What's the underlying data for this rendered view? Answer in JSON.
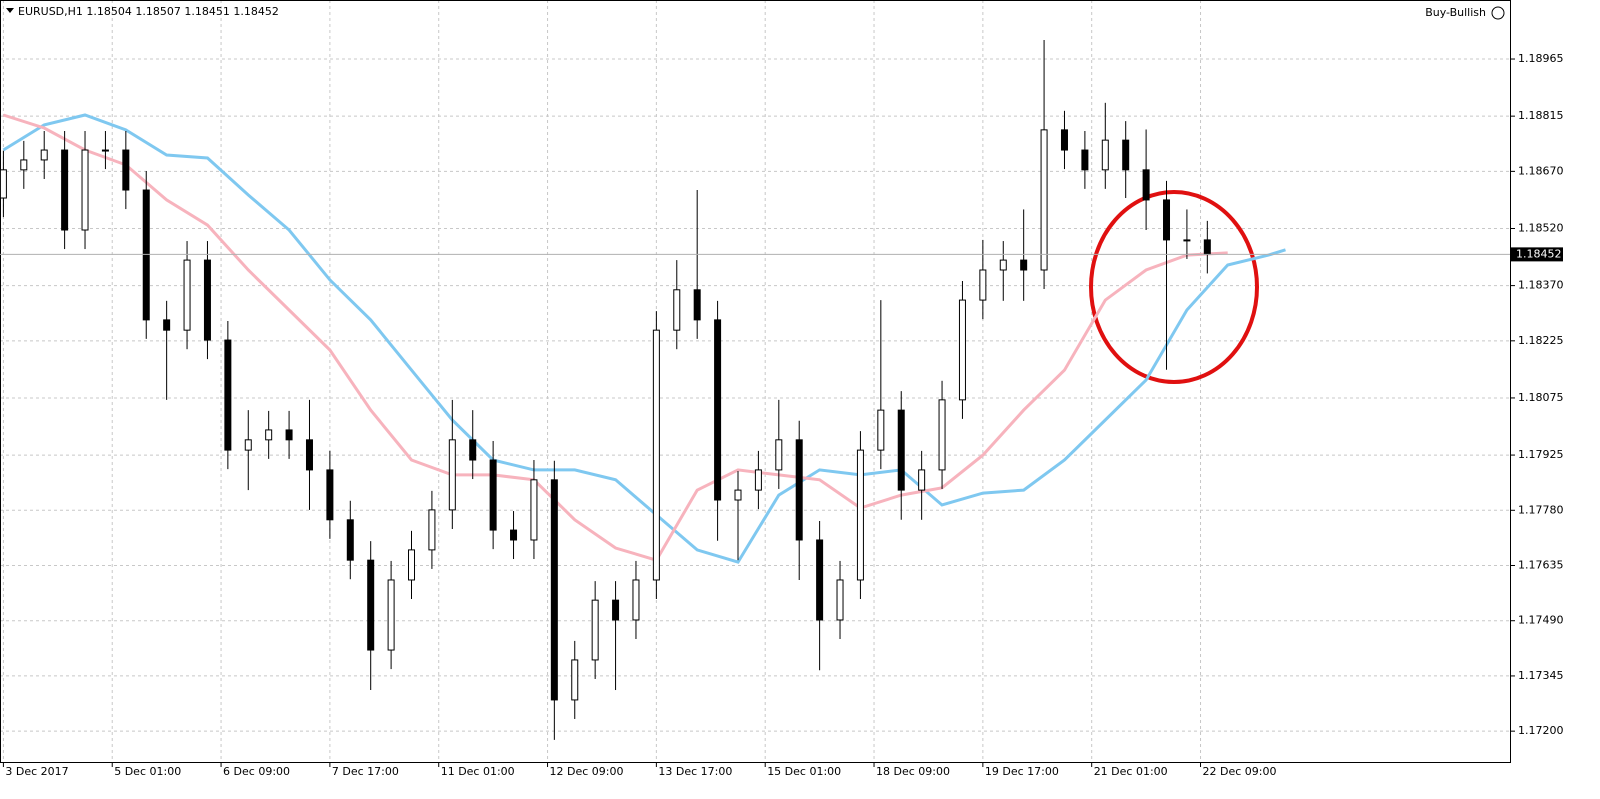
{
  "chart_data": {
    "type": "candlestick",
    "title": "EURUSD,H1  1.18504 1.18507 1.18451 1.18452",
    "indicator": "Buy-Bullish",
    "current_price": 1.18452,
    "x": [
      0,
      6,
      12,
      18,
      24,
      30,
      36,
      42,
      48,
      54,
      60,
      66,
      72,
      78,
      84,
      90,
      96,
      102,
      108,
      114,
      120,
      126,
      132,
      138,
      144,
      150,
      156,
      162,
      168,
      174,
      180,
      186,
      192,
      198,
      204,
      210,
      216,
      222,
      228,
      234,
      240,
      246,
      252,
      258,
      264,
      270,
      276,
      282,
      288,
      294,
      300,
      306,
      312,
      318,
      324,
      330,
      336,
      342,
      348,
      354
    ],
    "open": [
      1.186,
      1.18674,
      1.187,
      1.18726,
      1.18516,
      1.18726,
      1.18726,
      1.18621,
      1.1828,
      1.18253,
      1.18437,
      1.18227,
      1.17938,
      1.17965,
      1.17991,
      1.17965,
      1.17886,
      1.17755,
      1.17649,
      1.17413,
      1.17597,
      1.17676,
      1.17781,
      1.17965,
      1.17912,
      1.17728,
      1.17702,
      1.1786,
      1.17282,
      1.17387,
      1.17544,
      1.17492,
      1.17597,
      1.18253,
      1.18359,
      1.1828,
      1.17807,
      1.17833,
      1.17886,
      1.17965,
      1.17702,
      1.17492,
      1.17597,
      1.17938,
      1.18043,
      1.17833,
      1.17886,
      1.1807,
      1.18332,
      1.18411,
      1.18437,
      1.18411,
      1.18779,
      1.18726,
      1.18674,
      1.18752,
      1.18674,
      1.18595,
      1.1849,
      1.1849
    ],
    "high": [
      1.18724,
      1.1875,
      1.18776,
      1.18776,
      1.18776,
      1.18776,
      1.18776,
      1.18671,
      1.1833,
      1.18487,
      1.18487,
      1.18277,
      1.18043,
      1.18041,
      1.18041,
      1.1807,
      1.17936,
      1.17805,
      1.17699,
      1.17647,
      1.17726,
      1.17831,
      1.1807,
      1.18043,
      1.17962,
      1.17778,
      1.17912,
      1.1791,
      1.17437,
      1.17594,
      1.17594,
      1.17647,
      1.18303,
      1.18437,
      1.18621,
      1.1833,
      1.17883,
      1.17936,
      1.1807,
      1.18015,
      1.17752,
      1.17647,
      1.17988,
      1.18332,
      1.18093,
      1.17936,
      1.1812,
      1.18382,
      1.1849,
      1.18487,
      1.1857,
      1.19015,
      1.18829,
      1.18776,
      1.1885,
      1.18802,
      1.1878,
      1.18645,
      1.1857,
      1.1854
    ],
    "low": [
      1.1855,
      1.18624,
      1.1865,
      1.18466,
      1.18466,
      1.18676,
      1.18571,
      1.1823,
      1.1807,
      1.18203,
      1.18177,
      1.17888,
      1.17833,
      1.17915,
      1.17915,
      1.17781,
      1.17705,
      1.17599,
      1.17308,
      1.17363,
      1.17547,
      1.17626,
      1.17731,
      1.17862,
      1.17678,
      1.17652,
      1.17652,
      1.17177,
      1.17232,
      1.17337,
      1.17308,
      1.17442,
      1.17547,
      1.18203,
      1.1823,
      1.177,
      1.17649,
      1.17783,
      1.17836,
      1.17597,
      1.1736,
      1.17442,
      1.17547,
      1.17888,
      1.17755,
      1.17755,
      1.17836,
      1.1802,
      1.18282,
      1.1833,
      1.1833,
      1.18361,
      1.18676,
      1.18624,
      1.18624,
      1.186,
      1.18516,
      1.18149,
      1.1844,
      1.18402
    ],
    "close": [
      1.18674,
      1.187,
      1.18726,
      1.18516,
      1.18726,
      1.18726,
      1.18621,
      1.1828,
      1.18253,
      1.18437,
      1.18227,
      1.17938,
      1.17965,
      1.17991,
      1.17965,
      1.17886,
      1.17755,
      1.17649,
      1.17413,
      1.17597,
      1.17676,
      1.17781,
      1.17965,
      1.17912,
      1.17728,
      1.17702,
      1.1786,
      1.17282,
      1.17387,
      1.17544,
      1.17492,
      1.17597,
      1.18253,
      1.18359,
      1.1828,
      1.17807,
      1.17833,
      1.17886,
      1.17965,
      1.17702,
      1.17492,
      1.17597,
      1.17938,
      1.18043,
      1.17833,
      1.17886,
      1.1807,
      1.18332,
      1.18411,
      1.18437,
      1.18411,
      1.18779,
      1.18726,
      1.18674,
      1.18752,
      1.18674,
      1.18595,
      1.1849,
      1.1849,
      1.18452
    ],
    "series": [
      {
        "color": "#7fc8f0",
        "x": [
          0,
          12,
          24,
          36,
          48,
          60,
          72,
          84,
          96,
          108,
          120,
          132,
          144,
          156,
          168,
          180,
          192,
          204,
          216,
          228,
          240,
          252,
          264,
          276,
          288,
          300,
          312,
          324,
          336,
          348,
          360,
          372,
          377
        ],
        "values": [
          1.18726,
          1.18792,
          1.18818,
          1.18779,
          1.18713,
          1.18705,
          1.18608,
          1.18516,
          1.18385,
          1.1828,
          1.18148,
          1.18017,
          1.17912,
          1.17886,
          1.17886,
          1.1786,
          1.17768,
          1.17676,
          1.17644,
          1.1782,
          1.17886,
          1.17873,
          1.17886,
          1.17794,
          1.17825,
          1.17833,
          1.17912,
          1.18017,
          1.18122,
          1.18306,
          1.18424,
          1.1845,
          1.18464
        ]
      },
      {
        "color": "#f7b3bd",
        "x": [
          0,
          12,
          24,
          36,
          48,
          60,
          72,
          84,
          96,
          108,
          120,
          132,
          144,
          156,
          168,
          180,
          192,
          204,
          216,
          228,
          240,
          252,
          264,
          276,
          288,
          300,
          312,
          324,
          336,
          348,
          360
        ],
        "values": [
          1.18818,
          1.18784,
          1.18726,
          1.18687,
          1.18595,
          1.18529,
          1.18411,
          1.18306,
          1.18201,
          1.18043,
          1.17912,
          1.17873,
          1.17873,
          1.1786,
          1.17755,
          1.17681,
          1.17649,
          1.17833,
          1.17886,
          1.17873,
          1.1786,
          1.17786,
          1.1782,
          1.17839,
          1.17925,
          1.18043,
          1.18148,
          1.18332,
          1.18411,
          1.1845,
          1.18456
        ]
      }
    ],
    "xlim": [
      -1,
      443
    ],
    "xticks": [
      {
        "value": 0,
        "label": "3 Dec 2017"
      },
      {
        "value": 32,
        "label": "5 Dec 01:00"
      },
      {
        "value": 64,
        "label": "6 Dec 09:00"
      },
      {
        "value": 96,
        "label": "7 Dec 17:00"
      },
      {
        "value": 128,
        "label": "11 Dec 01:00"
      },
      {
        "value": 160,
        "label": "12 Dec 09:00"
      },
      {
        "value": 192,
        "label": "13 Dec 17:00"
      },
      {
        "value": 224,
        "label": "15 Dec 01:00"
      },
      {
        "value": 256,
        "label": "18 Dec 09:00"
      },
      {
        "value": 288,
        "label": "19 Dec 17:00"
      },
      {
        "value": 320,
        "label": "21 Dec 01:00"
      },
      {
        "value": 352,
        "label": "22 Dec 09:00"
      }
    ],
    "ylim": [
      1.17119,
      1.1912
    ],
    "yticks": [
      1.18965,
      1.18815,
      {
        "value": 1.1867,
        "label": "1.18670"
      },
      {
        "value": 1.1852,
        "label": "1.18520"
      },
      {
        "value": 1.1837,
        "label": "1.18370"
      },
      1.18225,
      1.18075,
      1.17925,
      {
        "value": 1.1778,
        "label": "1.17780"
      },
      1.17635,
      {
        "value": 1.1749,
        "label": "1.17490"
      },
      1.17345,
      {
        "value": 1.172,
        "label": "1.17200"
      }
    ],
    "grid": true
  }
}
